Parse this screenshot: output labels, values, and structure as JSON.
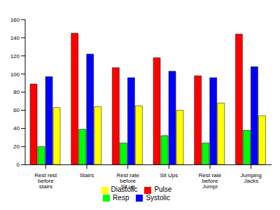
{
  "chart_data": {
    "type": "bar",
    "categories": [
      "Rest rest before stairs",
      "Stairs",
      "Rest rate before Sit up",
      "Sit Ups",
      "Rest rate before Jumpi",
      "Jumping Jacks"
    ],
    "series": [
      {
        "name": "Pulse",
        "color": "#ff0000",
        "values": [
          89,
          145,
          107,
          118,
          98,
          144
        ]
      },
      {
        "name": "Resp",
        "color": "#00ff00",
        "values": [
          20,
          39,
          24,
          32,
          24,
          38
        ]
      },
      {
        "name": "Systolic",
        "color": "#0000ff",
        "values": [
          97,
          122,
          96,
          103,
          96,
          108
        ]
      },
      {
        "name": "Diastolic",
        "color": "#ffff00",
        "values": [
          63,
          64,
          65,
          60,
          68,
          54
        ]
      }
    ],
    "ylim": [
      0,
      160
    ],
    "yticks": [
      0,
      20,
      40,
      60,
      80,
      100,
      120,
      140,
      160
    ],
    "grid": false,
    "legend": "bottom"
  }
}
